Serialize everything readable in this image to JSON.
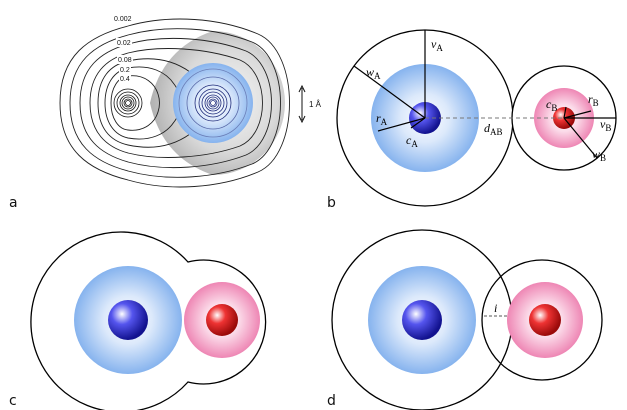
{
  "panel_labels": {
    "a": "a",
    "b": "b",
    "c": "c",
    "d": "d"
  },
  "panel_a": {
    "contour_values": [
      "0.002",
      "0.02",
      "0.08",
      "0.2",
      "0.4"
    ],
    "scale_bar_label": "1 Å"
  },
  "panel_b": {
    "labels": {
      "wA": {
        "sym": "w",
        "sub": "A"
      },
      "vA": {
        "sym": "v",
        "sub": "A"
      },
      "rA": {
        "sym": "r",
        "sub": "A"
      },
      "cA": {
        "sym": "c",
        "sub": "A"
      },
      "dAB": {
        "sym": "d",
        "sub": "AB"
      },
      "cB": {
        "sym": "c",
        "sub": "B"
      },
      "rB": {
        "sym": "r",
        "sub": "B"
      },
      "vB": {
        "sym": "v",
        "sub": "B"
      },
      "wB": {
        "sym": "w",
        "sub": "B"
      }
    }
  },
  "panel_d": {
    "intersection_label": "i"
  },
  "colors": {
    "atom_a_core": "#1a1acc",
    "atom_a_shell": "#8fbcf2",
    "atom_b_core": "#e01010",
    "atom_b_shell": "#f08cb8",
    "outline": "#000000"
  }
}
